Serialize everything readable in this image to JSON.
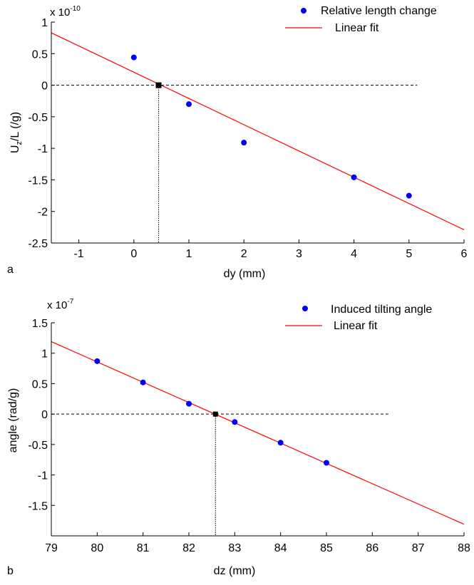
{
  "chart_data": [
    {
      "type": "scatter",
      "panel_label": "a",
      "exponent_label": "x 10",
      "exponent_power": "-10",
      "xlabel": "dy (mm)",
      "ylabel_main": "U",
      "ylabel_sub": "z",
      "ylabel_rest": "/L (/g)",
      "xlim": [
        -1.5,
        6
      ],
      "ylim": [
        -2.5,
        1
      ],
      "xticks": [
        "-1",
        "0",
        "1",
        "2",
        "3",
        "4",
        "5",
        "6"
      ],
      "yticks": [
        "1",
        "0.5",
        "0",
        "-0.5",
        "-1",
        "-1.5",
        "-2",
        "-2.5"
      ],
      "series": [
        {
          "name": "Relative length change",
          "kind": "points",
          "color": "#0000ff",
          "x": [
            0,
            1,
            2,
            4,
            5
          ],
          "y": [
            0.44,
            -0.3,
            -0.91,
            -1.46,
            -1.75
          ]
        },
        {
          "name": "Linear fit",
          "kind": "line",
          "color": "#ff0000",
          "x": [
            -1.5,
            6
          ],
          "y": [
            0.83,
            -2.29
          ]
        }
      ],
      "zero_crossing": {
        "x": 0.45,
        "y": 0
      },
      "reference_line_end_x": 5.15,
      "legend": "top-right",
      "grid": false
    },
    {
      "type": "scatter",
      "panel_label": "b",
      "exponent_label": "x 10",
      "exponent_power": "-7",
      "xlabel": "dz (mm)",
      "ylabel_main": "angle (rad/g)",
      "ylabel_sub": "",
      "ylabel_rest": "",
      "xlim": [
        79,
        88
      ],
      "ylim": [
        -2,
        1.5
      ],
      "xticks": [
        "79",
        "80",
        "81",
        "82",
        "83",
        "84",
        "85",
        "86",
        "87",
        "88"
      ],
      "yticks": [
        "1.5",
        "1",
        "0.5",
        "0",
        "-0.5",
        "-1",
        "-1.5"
      ],
      "series": [
        {
          "name": "Induced tilting angle",
          "kind": "points",
          "color": "#0000ff",
          "x": [
            80,
            81,
            82,
            83,
            84,
            85
          ],
          "y": [
            0.87,
            0.52,
            0.17,
            -0.13,
            -0.47,
            -0.8
          ]
        },
        {
          "name": "Linear fit",
          "kind": "line",
          "color": "#ff0000",
          "x": [
            79,
            88
          ],
          "y": [
            1.19,
            -1.81
          ]
        }
      ],
      "zero_crossing": {
        "x": 82.58,
        "y": 0
      },
      "reference_line_end_x": 86.35,
      "legend": "top-right",
      "grid": false
    }
  ]
}
